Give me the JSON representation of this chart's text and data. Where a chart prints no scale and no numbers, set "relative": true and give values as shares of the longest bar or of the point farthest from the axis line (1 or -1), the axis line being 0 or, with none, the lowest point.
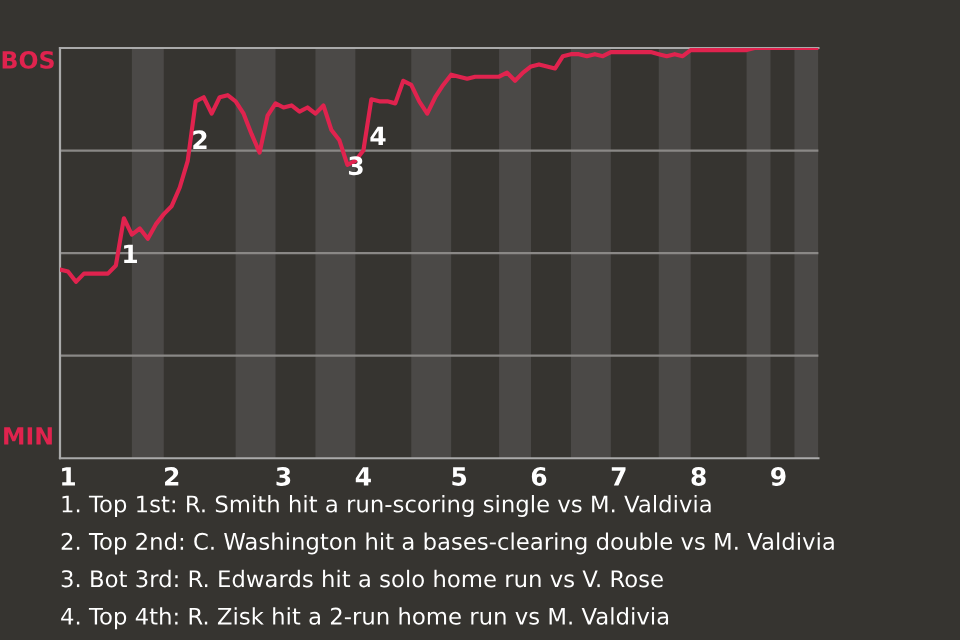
{
  "chart_data": {
    "type": "line",
    "relative": true,
    "categories": [
      null,
      "1",
      null,
      null,
      null,
      null,
      null,
      null,
      null,
      null,
      null,
      null,
      null,
      null,
      "2",
      null,
      null,
      null,
      null,
      null,
      null,
      null,
      null,
      null,
      null,
      null,
      null,
      null,
      "3",
      null,
      null,
      null,
      null,
      null,
      null,
      null,
      null,
      null,
      "4",
      null,
      null,
      null,
      null,
      null,
      null,
      null,
      null,
      null,
      null,
      null,
      "5",
      null,
      null,
      null,
      null,
      null,
      null,
      null,
      null,
      null,
      "6",
      null,
      null,
      null,
      null,
      null,
      null,
      null,
      null,
      null,
      "7",
      null,
      null,
      null,
      null,
      null,
      null,
      null,
      null,
      null,
      "8",
      null,
      null,
      null,
      null,
      null,
      null,
      null,
      null,
      null,
      "9",
      null,
      null,
      null,
      null,
      null
    ],
    "series": [
      {
        "color": "#e0234e",
        "values": [
          0.46,
          0.455,
          0.43,
          0.45,
          0.45,
          0.45,
          0.45,
          0.47,
          0.585,
          0.545,
          0.56,
          0.535,
          0.57,
          0.595,
          0.615,
          0.66,
          0.725,
          0.87,
          0.88,
          0.84,
          0.88,
          0.885,
          0.87,
          0.84,
          0.79,
          0.745,
          0.835,
          0.865,
          0.855,
          0.86,
          0.845,
          0.855,
          0.84,
          0.86,
          0.8,
          0.775,
          0.715,
          0.725,
          0.75,
          0.875,
          0.87,
          0.87,
          0.865,
          0.92,
          0.91,
          0.87,
          0.84,
          0.88,
          0.91,
          0.935,
          0.93,
          0.925,
          0.93,
          0.93,
          0.93,
          0.93,
          0.94,
          0.92,
          0.94,
          0.955,
          0.96,
          0.955,
          0.95,
          0.98,
          0.985,
          0.985,
          0.98,
          0.985,
          0.98,
          0.99,
          0.99,
          0.99,
          0.99,
          0.99,
          0.99,
          0.985,
          0.98,
          0.985,
          0.98,
          0.995,
          0.995,
          0.995,
          0.995,
          0.995,
          0.995,
          0.995,
          0.995,
          1,
          1,
          1,
          1,
          1,
          1,
          1,
          1,
          1
        ]
      }
    ],
    "ref_lines": [
      {
        "axis": "y",
        "value": 0.25,
        "color": "#8a8886"
      },
      {
        "axis": "y",
        "value": 0.5,
        "color": "#8a8886"
      },
      {
        "axis": "y",
        "value": 0.75,
        "color": "#8a8886"
      }
    ],
    "annotations": [
      "BOS",
      "MIN",
      "1",
      "2",
      "3",
      "4",
      "1. Top 1st: R. Smith hit a run-scoring single vs M. Valdivia",
      "2. Top 2nd: C. Washington hit a bases-clearing double vs M. Valdivia",
      "3. Bot 3rd: R. Edwards hit a solo home run vs V. Rose",
      "4. Top 4th: R. Zisk hit a 2-run home run vs M. Valdivia"
    ]
  }
}
